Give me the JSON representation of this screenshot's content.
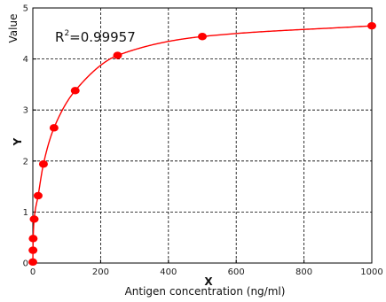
{
  "chart_data": {
    "type": "scatter",
    "xlabel_symbol": "X",
    "xlabel": "Antigen concentration (ng/ml)",
    "ylabel_symbol": "Y",
    "ylabel": "Value",
    "annotation": {
      "prefix": "R",
      "sup": "2",
      "suffix": "=0.99957"
    },
    "xlim": [
      0,
      1000
    ],
    "ylim": [
      0,
      5
    ],
    "xticks": [
      "0",
      "200",
      "400",
      "600",
      "800",
      "1000"
    ],
    "yticks": [
      "0",
      "1",
      "2",
      "3",
      "4",
      "5"
    ],
    "grid": true,
    "series": [
      {
        "points": [
          {
            "x": 0,
            "y": 0.02
          },
          {
            "x": 0.5,
            "y": 0.25
          },
          {
            "x": 1,
            "y": 0.48
          },
          {
            "x": 3.9,
            "y": 0.86
          },
          {
            "x": 15.6,
            "y": 1.32
          },
          {
            "x": 31.25,
            "y": 1.94
          },
          {
            "x": 62.5,
            "y": 2.65
          },
          {
            "x": 125,
            "y": 3.38
          },
          {
            "x": 250,
            "y": 4.07
          },
          {
            "x": 500,
            "y": 4.44
          },
          {
            "x": 1000,
            "y": 4.65
          }
        ],
        "color": "#ff0000"
      }
    ],
    "fit_curve": {
      "color": "#ff0000"
    }
  }
}
